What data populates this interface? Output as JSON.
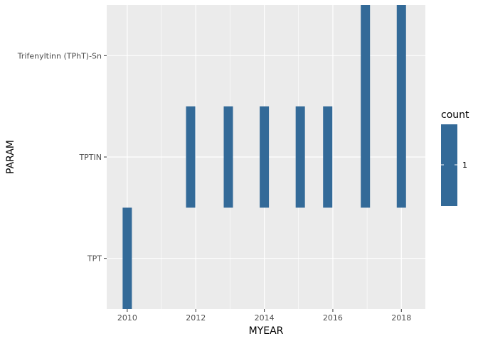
{
  "chart_data": {
    "type": "heatmap",
    "title": "",
    "xlabel": "MYEAR",
    "ylabel": "PARAM",
    "x_ticks": [
      2010,
      2012,
      2014,
      2016,
      2018
    ],
    "xlim": [
      2009.4,
      2018.7
    ],
    "y_categories": [
      "TPT",
      "TPTIN",
      "Trifenyltinn (TPhT)-Sn"
    ],
    "grid": true,
    "fill_color": "#336a98",
    "panel_color": "#ebebeb",
    "legend": {
      "title": "count",
      "position": "right",
      "labels": [
        "1"
      ]
    },
    "tiles": [
      {
        "x": 2010.0,
        "y_from": "TPT",
        "y_to": "TPT",
        "count": 1
      },
      {
        "x": 2011.85,
        "y_from": "TPTIN",
        "y_to": "TPTIN",
        "count": 1
      },
      {
        "x": 2012.95,
        "y_from": "TPTIN",
        "y_to": "TPTIN",
        "count": 1
      },
      {
        "x": 2014.0,
        "y_from": "TPTIN",
        "y_to": "TPTIN",
        "count": 1
      },
      {
        "x": 2015.05,
        "y_from": "TPTIN",
        "y_to": "TPTIN",
        "count": 1
      },
      {
        "x": 2015.85,
        "y_from": "TPTIN",
        "y_to": "TPTIN",
        "count": 1
      },
      {
        "x": 2016.95,
        "y_from": "TPTIN",
        "y_to": "Trifenyltinn (TPhT)-Sn",
        "count": 1
      },
      {
        "x": 2018.0,
        "y_from": "TPTIN",
        "y_to": "Trifenyltinn (TPhT)-Sn",
        "count": 1
      }
    ]
  }
}
